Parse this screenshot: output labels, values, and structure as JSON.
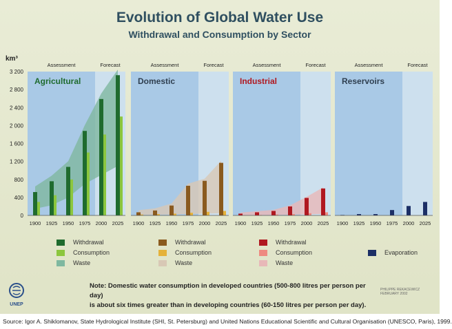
{
  "title": "Evolution of Global Water Use",
  "subtitle": "Withdrawal and Consumption by Sector",
  "unit_label": "km³",
  "colors": {
    "assessment_panel": "#a9c9e6",
    "forecast_panel": "#cde0ee",
    "agri_withdrawal": "#1f6b2e",
    "agri_consumption": "#8cc63e",
    "agri_waste": "#7fb8a0",
    "dom_withdrawal": "#8a5a1e",
    "dom_consumption": "#e5b23a",
    "dom_waste": "#d8c8b5",
    "ind_withdrawal": "#b01820",
    "ind_consumption": "#ee8a80",
    "ind_waste": "#e8b8b8",
    "res_evaporation": "#1c2f66"
  },
  "chart_data": {
    "type": "bar",
    "ylim": [
      0,
      3200
    ],
    "yticks": [
      "0",
      "400",
      "800",
      "1 200",
      "1 600",
      "2 000",
      "2 400",
      "2 800",
      "3 200"
    ],
    "ytick_values": [
      0,
      400,
      800,
      1200,
      1600,
      2000,
      2400,
      2800,
      3200
    ],
    "categories": [
      "1900",
      "1925",
      "1950",
      "1975",
      "2000",
      "2025"
    ],
    "period_labels": {
      "assessment": "Assessment",
      "forecast": "Forecast"
    },
    "panels": [
      {
        "name": "Agricultural",
        "title_color": "#1f6b2e",
        "series": [
          {
            "name": "Withdrawal",
            "values": [
              520,
              760,
              1080,
              1880,
              2590,
              3120
            ]
          },
          {
            "name": "Consumption",
            "values": [
              300,
              450,
              800,
              1400,
              1800,
              2200
            ]
          }
        ],
        "waste_band": true
      },
      {
        "name": "Domestic",
        "title_color": "#2f3f50",
        "series": [
          {
            "name": "Withdrawal",
            "values": [
              70,
              110,
              220,
              660,
              770,
              1170
            ]
          },
          {
            "name": "Consumption",
            "values": [
              20,
              30,
              40,
              60,
              80,
              100
            ]
          }
        ],
        "waste_band": true
      },
      {
        "name": "Industrial",
        "title_color": "#b01820",
        "series": [
          {
            "name": "Withdrawal",
            "values": [
              40,
              70,
              100,
              200,
              390,
              600
            ]
          },
          {
            "name": "Consumption",
            "values": [
              5,
              10,
              20,
              30,
              50,
              70
            ]
          }
        ],
        "waste_band": true
      },
      {
        "name": "Reservoirs",
        "title_color": "#2f3f50",
        "series": [
          {
            "name": "Evaporation",
            "values": [
              10,
              30,
              30,
              120,
              210,
              300
            ]
          }
        ],
        "waste_band": false
      }
    ]
  },
  "legends": {
    "agricultural": [
      "Withdrawal",
      "Consumption",
      "Waste"
    ],
    "domestic": [
      "Withdrawal",
      "Consumption",
      "Waste"
    ],
    "industrial": [
      "Withdrawal",
      "Consumption",
      "Waste"
    ],
    "reservoirs": [
      "Evaporation"
    ]
  },
  "note": {
    "label": "Note:",
    "line1": "Domestic water consumption in developed countries (500-800 litres per person per day)",
    "line2": "is about six times greater than in developing countries (60-150 litres per person per day)."
  },
  "logo_label": "UNEP",
  "credit": "PHILIPPE REKACEWICZ FEBRUARY 2002",
  "source": "Source: Igor A. Shiklomanov, State Hydrological Institute (SHI, St. Petersburg) and United Nations Educational Scientific and Cultural Organisation (UNESCO, Paris), 1999."
}
